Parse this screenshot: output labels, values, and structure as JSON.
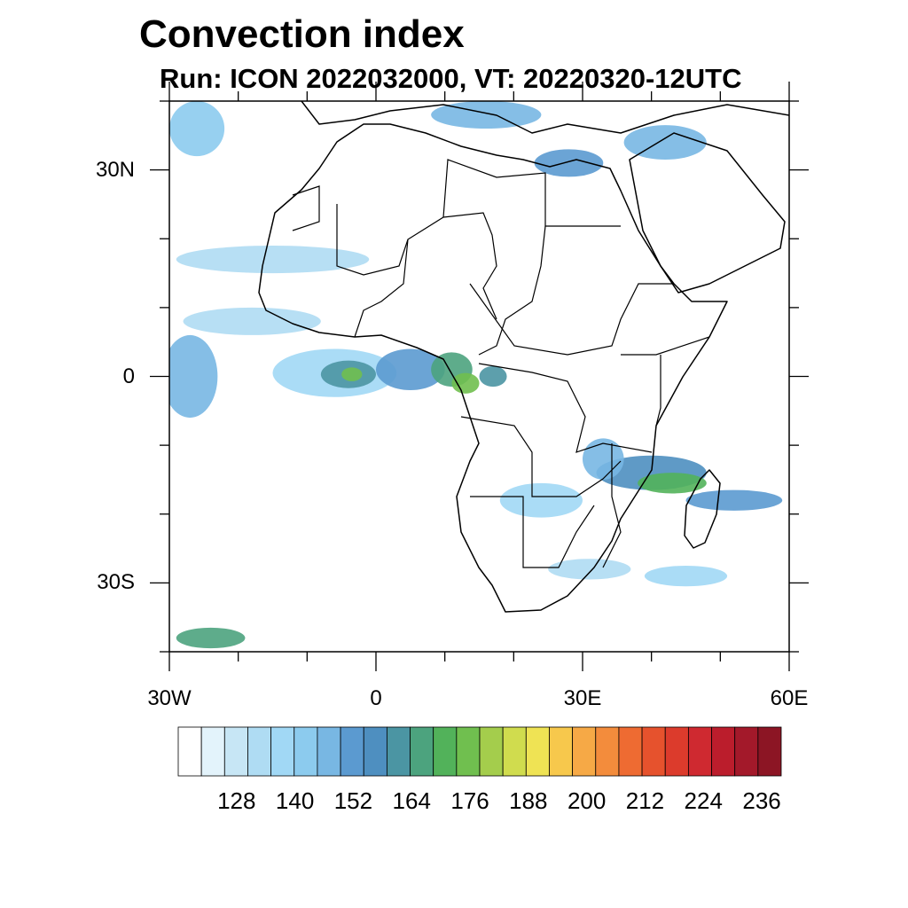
{
  "title": "Convection index",
  "subtitle": "Run: ICON 2022032000,  VT: 20220320-12UTC",
  "map": {
    "extent": {
      "lon_min": -30,
      "lon_max": 60,
      "lat_min": -40,
      "lat_max": 40
    },
    "lat_labels": [
      {
        "lat": 30,
        "text": "30N"
      },
      {
        "lat": 0,
        "text": "0"
      },
      {
        "lat": -30,
        "text": "30S"
      }
    ],
    "lon_labels": [
      {
        "lon": -30,
        "text": "30W"
      },
      {
        "lon": 0,
        "text": "0"
      },
      {
        "lon": 30,
        "text": "30E"
      },
      {
        "lon": 60,
        "text": "60E"
      }
    ],
    "blobs": [
      {
        "lon": -6,
        "lat": 0.5,
        "rx": 9,
        "ry": 3.5,
        "level": 4
      },
      {
        "lon": -4,
        "lat": 0.3,
        "rx": 4,
        "ry": 2,
        "level": 9
      },
      {
        "lon": -3.5,
        "lat": 0.3,
        "rx": 1.5,
        "ry": 1,
        "level": 12
      },
      {
        "lon": 5,
        "lat": 1,
        "rx": 5,
        "ry": 3,
        "level": 7
      },
      {
        "lon": 11,
        "lat": 1,
        "rx": 3,
        "ry": 2.5,
        "level": 10
      },
      {
        "lon": 13,
        "lat": -1,
        "rx": 2,
        "ry": 1.5,
        "level": 12
      },
      {
        "lon": 17,
        "lat": 0,
        "rx": 2,
        "ry": 1.5,
        "level": 9
      },
      {
        "lon": -27,
        "lat": 0,
        "rx": 4,
        "ry": 6,
        "level": 6
      },
      {
        "lon": 40,
        "lat": -14,
        "rx": 8,
        "ry": 2.5,
        "level": 8
      },
      {
        "lon": 43,
        "lat": -15.5,
        "rx": 5,
        "ry": 1.5,
        "level": 11
      },
      {
        "lon": 33,
        "lat": -12,
        "rx": 3,
        "ry": 3,
        "level": 6
      },
      {
        "lon": 52,
        "lat": -18,
        "rx": 7,
        "ry": 1.5,
        "level": 7
      },
      {
        "lon": 24,
        "lat": -18,
        "rx": 6,
        "ry": 2.5,
        "level": 4
      },
      {
        "lon": 31,
        "lat": -28,
        "rx": 6,
        "ry": 1.5,
        "level": 3
      },
      {
        "lon": 45,
        "lat": -29,
        "rx": 6,
        "ry": 1.5,
        "level": 4
      },
      {
        "lon": 28,
        "lat": 31,
        "rx": 5,
        "ry": 2,
        "level": 7
      },
      {
        "lon": 42,
        "lat": 34,
        "rx": 6,
        "ry": 2.5,
        "level": 6
      },
      {
        "lon": 16,
        "lat": 38,
        "rx": 8,
        "ry": 2,
        "level": 6
      },
      {
        "lon": -26,
        "lat": 36,
        "rx": 4,
        "ry": 4,
        "level": 5
      },
      {
        "lon": -15,
        "lat": 17,
        "rx": 14,
        "ry": 2,
        "level": 3
      },
      {
        "lon": -18,
        "lat": 8,
        "rx": 10,
        "ry": 2,
        "level": 3
      },
      {
        "lon": -24,
        "lat": -38,
        "rx": 5,
        "ry": 1.5,
        "level": 10
      }
    ]
  },
  "colorbar": {
    "colors": [
      "#ffffff",
      "#e3f3fb",
      "#c7e6f5",
      "#afdcf3",
      "#a1d8f5",
      "#8ccbee",
      "#78b7e3",
      "#5b9ad0",
      "#4e8fc0",
      "#4b95a3",
      "#4ca37e",
      "#52b25a",
      "#70bf4f",
      "#a4cd4c",
      "#d0dc4e",
      "#efe354",
      "#f7c84c",
      "#f6a946",
      "#f38c3c",
      "#ee6b32",
      "#e6522d",
      "#dc3b2c",
      "#cf2930",
      "#bb1d2c",
      "#a3192a",
      "#8c1524"
    ],
    "labels": [
      {
        "index": 3,
        "text": "128"
      },
      {
        "index": 6,
        "text": "140"
      },
      {
        "index": 9,
        "text": "152"
      },
      {
        "index": 12,
        "text": "164"
      },
      {
        "index": 15,
        "text": "176"
      },
      {
        "index": 18,
        "text": "188"
      },
      {
        "index": 21,
        "text": "200"
      },
      {
        "index": 24,
        "text": "212"
      },
      {
        "index": 27,
        "text": "224"
      },
      {
        "index": 30,
        "text": "236"
      }
    ]
  }
}
